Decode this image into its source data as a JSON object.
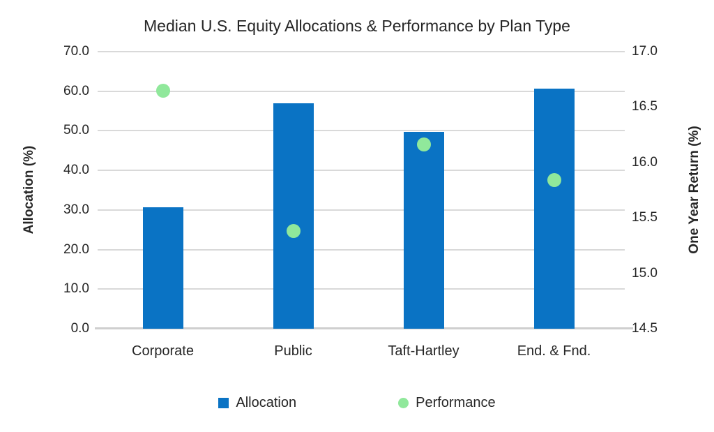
{
  "chart_data": {
    "type": "bar",
    "subtype": "combo-bar-scatter",
    "title": "Median U.S. Equity Allocations & Performance by Plan Type",
    "categories": [
      "Corporate",
      "Public",
      "Taft-Hartley",
      "End. & Fnd."
    ],
    "series": [
      {
        "name": "Allocation",
        "type": "bar",
        "axis": "left",
        "values": [
          30.7,
          57.0,
          49.7,
          60.7
        ],
        "color": "#0a73c4"
      },
      {
        "name": "Performance",
        "type": "scatter",
        "axis": "right",
        "values": [
          16.65,
          15.38,
          16.16,
          15.84
        ],
        "color": "#90e89b"
      }
    ],
    "left_axis": {
      "label": "Allocation (%)",
      "min": 0.0,
      "max": 70.0,
      "step": 10.0,
      "tick_labels": [
        "0.0",
        "10.0",
        "20.0",
        "30.0",
        "40.0",
        "50.0",
        "60.0",
        "70.0"
      ]
    },
    "right_axis": {
      "label": "One Year Return (%)",
      "min": 14.5,
      "max": 17.0,
      "step": 0.5,
      "tick_labels": [
        "14.5",
        "15.0",
        "15.5",
        "16.0",
        "16.5",
        "17.0"
      ]
    },
    "grid": true,
    "legend": {
      "position": "bottom",
      "entries": [
        {
          "label": "Allocation",
          "marker": "square",
          "color": "#0a73c4"
        },
        {
          "label": "Performance",
          "marker": "circle",
          "color": "#90e89b"
        }
      ]
    }
  },
  "colors": {
    "background": "#ffffff",
    "gridline": "#d9d9d9",
    "axis_line": "#cfcfcf",
    "text": "#262626"
  }
}
